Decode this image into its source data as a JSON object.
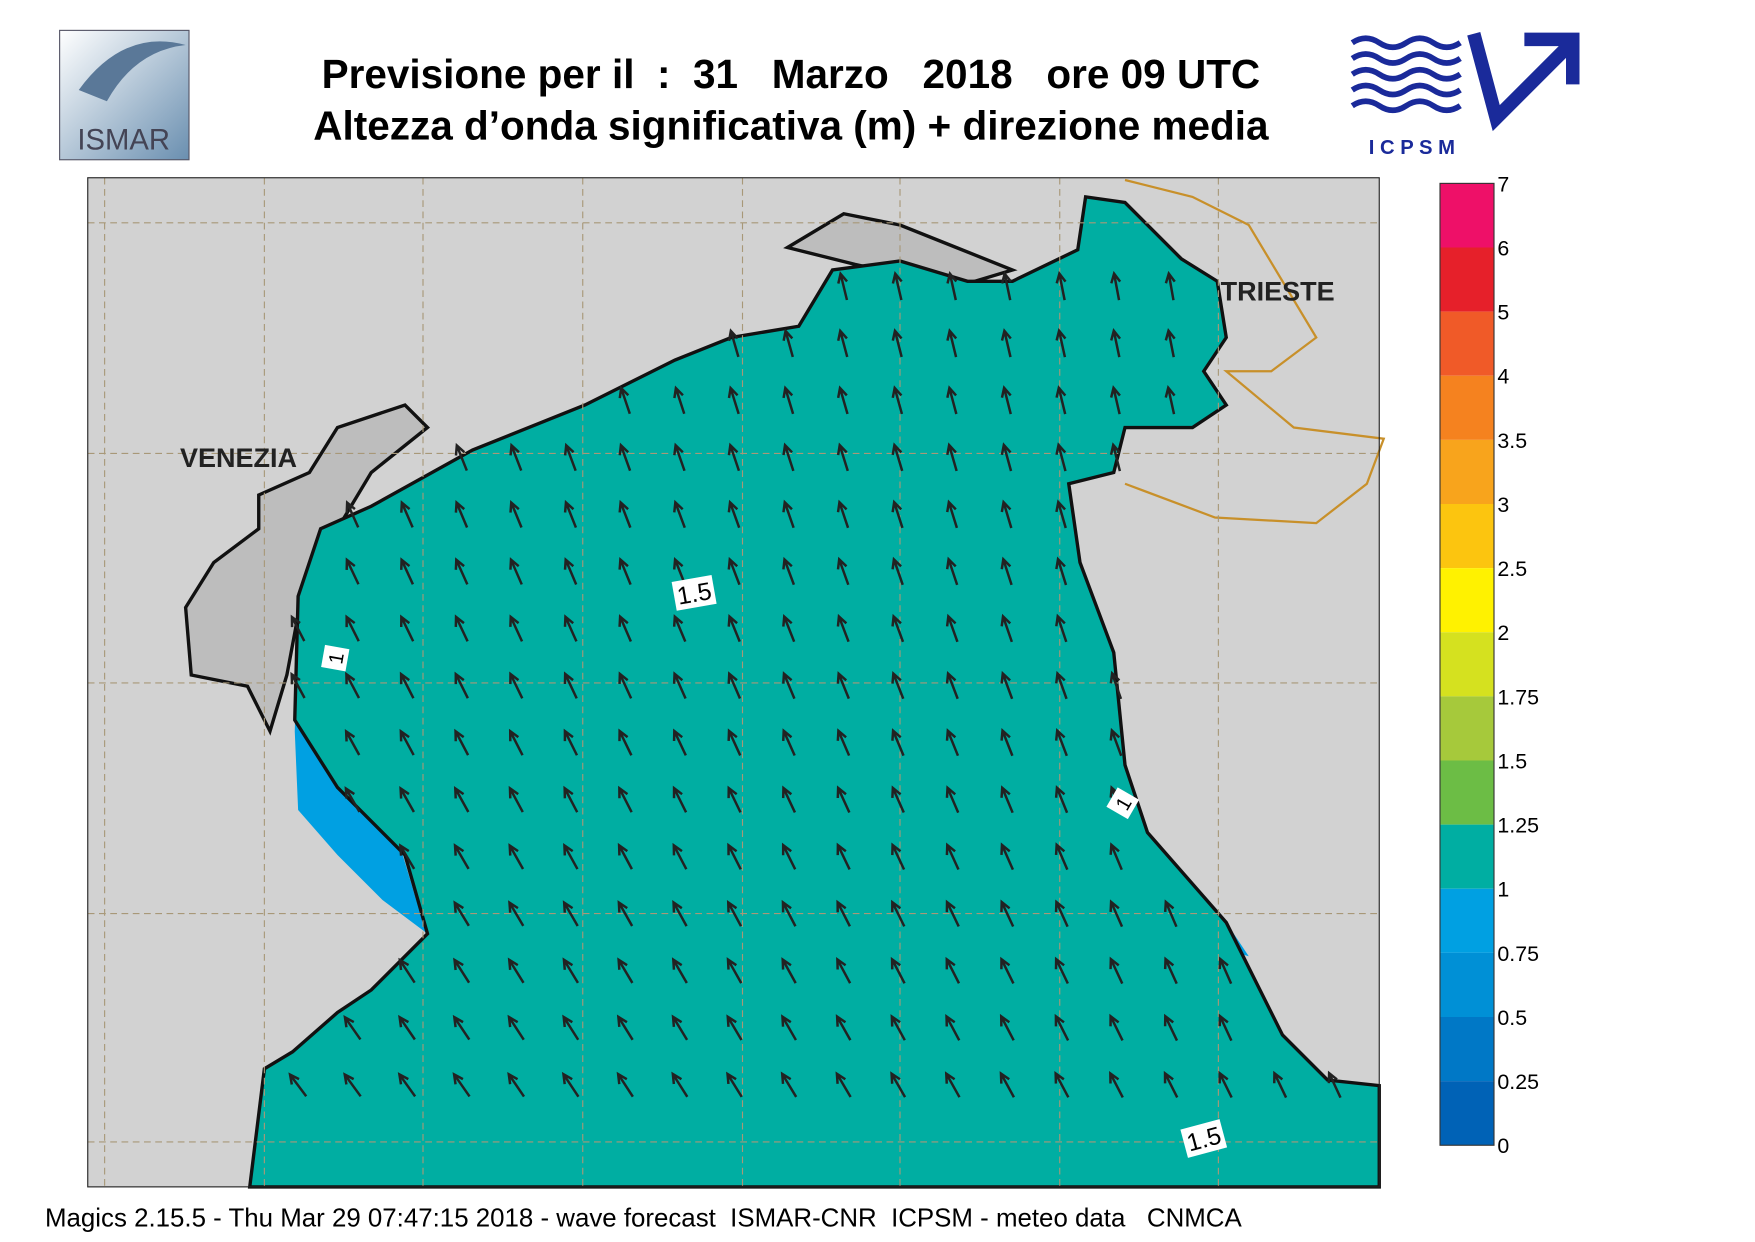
{
  "header": {
    "title_line1": "Previsione per il  :  31   Marzo   2018   ore 09 UTC",
    "title_line2": "Altezza d’onda significativa (m) + direzione media",
    "logo_left": "ISMAR",
    "logo_right": "I C P S M"
  },
  "map": {
    "places": [
      "VENEZIA",
      "TRIESTE"
    ],
    "contour_labels": [
      "1.5",
      "1",
      "1",
      "1.5"
    ]
  },
  "legend": {
    "levels": [
      7,
      6,
      5,
      4,
      3.5,
      3,
      2.5,
      2,
      1.75,
      1.5,
      1.25,
      1,
      0.75,
      0.5,
      0.25,
      0
    ],
    "colors": [
      "#ee1068",
      "#e6202a",
      "#f05a28",
      "#f5821f",
      "#f8a41c",
      "#fcc50f",
      "#fff200",
      "#d5e11f",
      "#a6c93b",
      "#6cbd45",
      "#00aea2",
      "#00a0e2",
      "#0090d6",
      "#0078c6",
      "#0062b6"
    ]
  },
  "footer": "Magics 2.15.5 - Thu Mar 29 07:47:15 2018 - wave forecast  ISMAR-CNR  ICPSM - meteo data   CNMCA"
}
